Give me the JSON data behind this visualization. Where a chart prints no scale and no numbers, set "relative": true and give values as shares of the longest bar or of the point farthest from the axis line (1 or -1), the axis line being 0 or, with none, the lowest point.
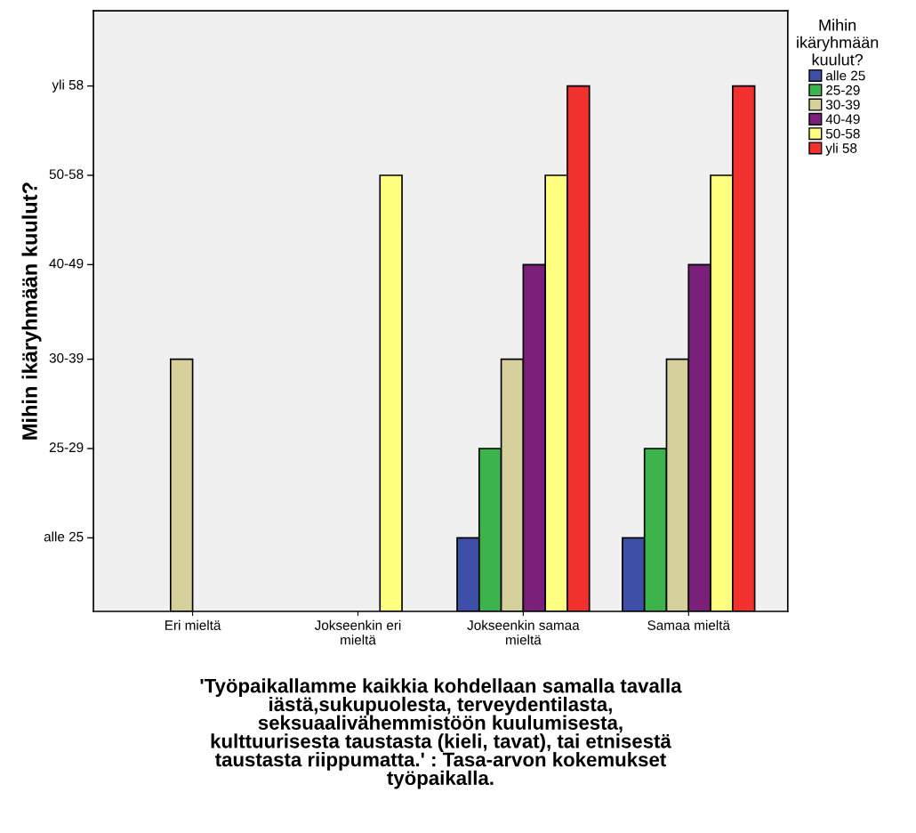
{
  "chart_data": {
    "type": "bar",
    "categories": [
      "Eri mieltä",
      "Jokseenkin eri\nmieltä",
      "Jokseenkin samaa\nmieltä",
      "Samaa mieltä"
    ],
    "series": [
      {
        "name": "alle 25",
        "color": "#3e4fa8",
        "values": [
          null,
          null,
          0.14,
          0.14
        ]
      },
      {
        "name": "25-29",
        "color": "#3cb44b",
        "values": [
          null,
          null,
          0.31,
          0.31
        ]
      },
      {
        "name": "30-39",
        "color": "#d6d09c",
        "values": [
          0.48,
          null,
          0.48,
          0.48
        ]
      },
      {
        "name": "40-49",
        "color": "#7a1f7a",
        "values": [
          null,
          null,
          0.66,
          0.66
        ]
      },
      {
        "name": "50-58",
        "color": "#ffff80",
        "values": [
          null,
          0.83,
          0.83,
          0.83
        ]
      },
      {
        "name": "yli 58",
        "color": "#f0312d",
        "values": [
          null,
          null,
          1,
          1
        ]
      }
    ],
    "relative": true,
    "annotations": [
      "alle 25",
      "25-29",
      "30-39",
      "40-49",
      "50-58",
      "yli 58"
    ],
    "ylabel": "Mihin ikäryhmään kuulut?",
    "xlabel": "'Työpaikallamme kaikkia kohdellaan samalla tavalla\niästä,sukupuolesta, terveydentilasta,\nseksuaalivähemmistöön kuulumisesta,\nkulttuurisesta taustasta (kieli, tavat), tai etnisestä\ntaustasta riippumatta.' : Tasa-arvon kokemukset\ntyöpaikalla.",
    "legend_title": "Mihin\nikäryhmään\nkuulut?",
    "legend": "right",
    "grid": false
  }
}
